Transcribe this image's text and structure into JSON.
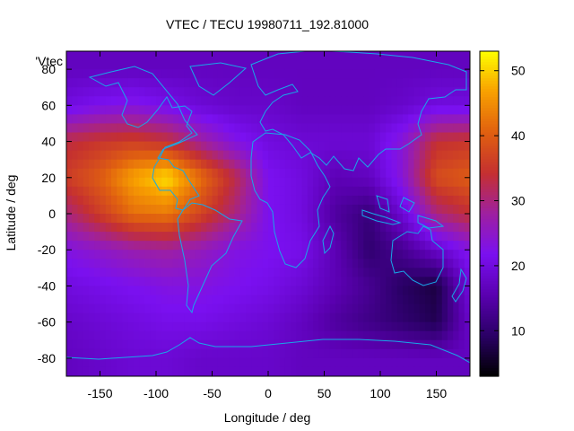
{
  "chart_data": {
    "type": "heatmap",
    "title": "VTEC / TECU 19980711_192.81000",
    "xlabel": "Longitude / deg",
    "ylabel": "Latitude / deg",
    "legend_key": "'Vtec",
    "xlim": [
      -180,
      180
    ],
    "ylim": [
      -90,
      90
    ],
    "x_ticks": [
      -150,
      -100,
      -50,
      0,
      50,
      100,
      150
    ],
    "y_ticks": [
      -80,
      -60,
      -40,
      -20,
      0,
      20,
      40,
      60,
      80
    ],
    "colorbar": {
      "range": [
        3,
        53
      ],
      "ticks": [
        10,
        20,
        30,
        40,
        50
      ]
    },
    "colormap_stops": [
      "#000000",
      "#2a0066",
      "#5a00b0",
      "#7a10f0",
      "#9e20a0",
      "#c53030",
      "#e06010",
      "#f8a000",
      "#ffff00"
    ],
    "coastline_color": "#18a8e8",
    "grid": false,
    "lat": [
      -80,
      -60,
      -40,
      -20,
      0,
      20,
      40,
      60,
      80
    ],
    "lon": [
      -180,
      -150,
      -120,
      -90,
      -60,
      -30,
      0,
      30,
      60,
      90,
      120,
      150,
      180
    ],
    "values": [
      [
        17,
        18,
        19,
        19,
        18,
        18,
        18,
        17,
        17,
        17,
        17,
        17,
        17
      ],
      [
        18,
        19,
        20,
        21,
        21,
        20,
        19,
        17,
        14,
        12,
        10,
        8,
        18
      ],
      [
        20,
        21,
        22,
        23,
        23,
        22,
        21,
        19,
        16,
        13,
        9,
        7,
        20
      ],
      [
        23,
        25,
        27,
        28,
        26,
        23,
        22,
        21,
        16,
        10,
        13,
        18,
        23
      ],
      [
        30,
        36,
        42,
        43,
        37,
        30,
        22,
        20,
        14,
        11,
        19,
        30,
        34
      ],
      [
        36,
        40,
        47,
        51,
        42,
        33,
        22,
        20,
        16,
        17,
        24,
        38,
        40
      ],
      [
        33,
        35,
        36,
        34,
        28,
        23,
        20,
        19,
        19,
        19,
        24,
        34,
        35
      ],
      [
        20,
        22,
        23,
        21,
        19,
        18,
        18,
        17,
        17,
        17,
        18,
        20,
        20
      ],
      [
        17,
        17,
        17,
        17,
        17,
        17,
        17,
        17,
        17,
        17,
        17,
        17,
        17
      ]
    ]
  }
}
